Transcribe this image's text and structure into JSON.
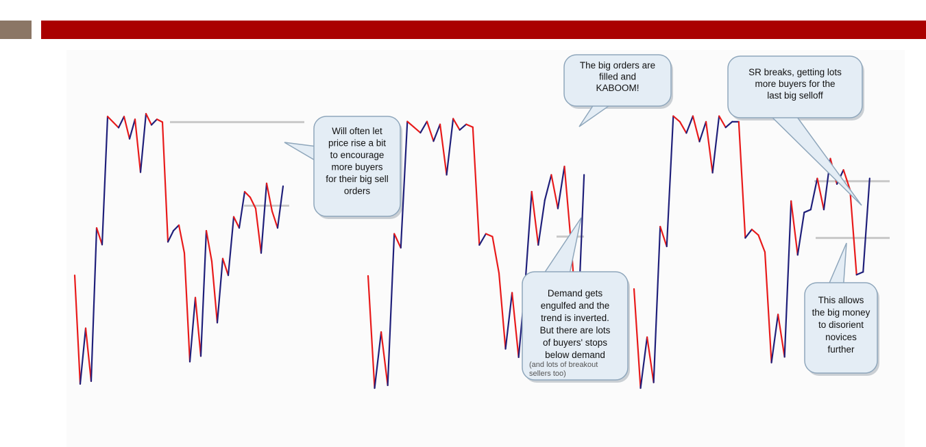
{
  "header": {
    "accent_color": "#aa0000",
    "square_color": "#8b7665"
  },
  "colors": {
    "up": "#1f1f7a",
    "down": "#e81a1a",
    "sr_line": "#c8c8c8",
    "callout_fill": "#e4edf5",
    "callout_stroke": "#8ea6bb"
  },
  "chart_data": [
    {
      "type": "line",
      "title": "",
      "xlabel": "",
      "ylabel": "",
      "x": [
        0,
        1,
        2,
        3,
        4,
        5,
        6,
        7,
        8,
        9,
        10,
        11,
        12,
        13,
        14,
        15,
        16,
        17,
        18,
        19,
        20,
        21,
        22,
        23,
        24,
        25,
        26,
        27,
        28,
        29,
        30,
        31,
        32,
        33,
        34,
        35,
        36,
        37,
        38
      ],
      "y": [
        40,
        1,
        21,
        2,
        57,
        51,
        97,
        95,
        93,
        97,
        89,
        96,
        77,
        98,
        94,
        96,
        95,
        52,
        56,
        58,
        48,
        9,
        32,
        11,
        56,
        45,
        23,
        46,
        40,
        61,
        57,
        70,
        68,
        64,
        48,
        73,
        63,
        57,
        72
      ],
      "support_resistance_levels": [
        95,
        65
      ]
    },
    {
      "type": "line",
      "title": "",
      "xlabel": "",
      "ylabel": "",
      "x": [
        0,
        1,
        2,
        3,
        4,
        5,
        6,
        7,
        8,
        9,
        10,
        11,
        12,
        13,
        14,
        15,
        16,
        17,
        18,
        19,
        20,
        21,
        22,
        23,
        24,
        25,
        26,
        27,
        28,
        29,
        30,
        31,
        32,
        33
      ],
      "y": [
        40,
        0,
        20,
        1,
        55,
        50,
        95,
        93,
        91,
        95,
        88,
        94,
        76,
        96,
        92,
        94,
        93,
        51,
        55,
        54,
        41,
        14,
        34,
        11,
        37,
        70,
        51,
        67,
        76,
        64,
        79,
        52,
        20,
        76
      ],
      "support_resistance_levels": [
        54
      ]
    },
    {
      "type": "line",
      "title": "",
      "xlabel": "",
      "ylabel": "",
      "x": [
        0,
        1,
        2,
        3,
        4,
        5,
        6,
        7,
        8,
        9,
        10,
        11,
        12,
        13,
        14,
        15,
        16,
        17,
        18,
        19,
        20,
        21,
        22,
        23,
        24,
        25,
        26,
        27,
        28,
        29,
        30,
        31,
        32,
        33,
        34,
        35,
        36
      ],
      "y": [
        35,
        0,
        18,
        2,
        57,
        50,
        96,
        94,
        90,
        96,
        87,
        94,
        76,
        96,
        92,
        94,
        94,
        53,
        56,
        54,
        48,
        9,
        26,
        11,
        66,
        47,
        62,
        63,
        74,
        63,
        81,
        72,
        77,
        70,
        40,
        41,
        74
      ],
      "support_resistance_levels": [
        73,
        53
      ]
    }
  ],
  "callouts": [
    {
      "id": "panel1",
      "lines": [
        "Will often let",
        "price rise a bit",
        "to encourage",
        "more buyers",
        "for their big sell",
        "orders"
      ]
    },
    {
      "id": "kaboom",
      "lines": [
        "The big orders are",
        "filled and",
        "KABOOM!"
      ]
    },
    {
      "id": "demand",
      "lines": [
        "Demand gets",
        "engulfed and the",
        "trend is inverted.",
        "But there are lots",
        "of buyers' stops",
        "below demand"
      ],
      "sub_lines": [
        "(and lots of breakout",
        "sellers too)"
      ]
    },
    {
      "id": "sr",
      "lines": [
        "SR breaks, getting lots",
        "more buyers for the",
        "last big selloff"
      ]
    },
    {
      "id": "novices",
      "lines": [
        "This allows",
        "the big money",
        "to disorient",
        "novices",
        "further"
      ]
    }
  ]
}
